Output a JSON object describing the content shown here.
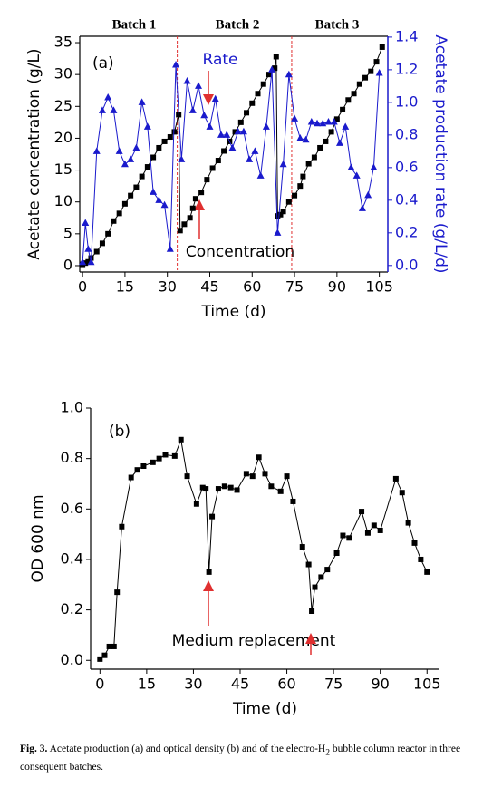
{
  "chart_data": [
    {
      "type": "line",
      "panel": "(a)",
      "batches": [
        "Batch 1",
        "Batch 2",
        "Batch 3"
      ],
      "xlabel": "Time (d)",
      "ylabel": "Acetate concentration (g/L)",
      "y2label": "Acetate production rate (g/L/d)",
      "xlim": [
        -1,
        108
      ],
      "xticks": [
        0,
        15,
        30,
        45,
        60,
        75,
        90,
        105
      ],
      "ylim": [
        -1,
        36
      ],
      "yticks": [
        0,
        5,
        10,
        15,
        20,
        25,
        30,
        35
      ],
      "y2lim": [
        -0.04,
        1.405
      ],
      "y2ticks": [
        {
          "value": 0,
          "label": "0.0"
        },
        {
          "value": 0.2,
          "label": "0.2"
        },
        {
          "value": 0.4,
          "label": "0.4"
        },
        {
          "value": 0.6,
          "label": "0.6"
        },
        {
          "value": 0.8,
          "label": "0.8"
        },
        {
          "value": 1.0,
          "label": "1.0"
        },
        {
          "value": 1.2,
          "label": "1.2"
        },
        {
          "value": 1.4,
          "label": "1.4"
        }
      ],
      "y2color": "#1a1acc",
      "vlines": [
        33.5,
        74
      ],
      "vline_color": "#e03030",
      "series": [
        {
          "name": "Concentration",
          "color": "#000000",
          "marker": "square",
          "x": [
            0,
            1,
            2,
            3,
            5,
            7,
            9,
            11,
            13,
            15,
            17,
            19,
            21,
            23,
            25,
            27,
            29,
            31,
            32.5,
            34,
            34.5,
            36,
            38,
            39,
            40,
            42,
            44,
            46,
            48,
            50,
            52,
            54,
            56,
            58,
            60,
            62,
            64,
            66,
            68,
            68.5,
            69,
            70,
            71,
            73,
            75,
            77,
            78,
            80,
            82,
            84,
            86,
            88,
            90,
            92,
            94,
            96,
            98,
            100,
            102,
            104,
            106
          ],
          "values": [
            0.2,
            0.4,
            0.6,
            1.2,
            2.2,
            3.5,
            5,
            7,
            8.2,
            9.7,
            11,
            12.3,
            14,
            15.5,
            17,
            18.5,
            19.5,
            20.2,
            21,
            23.7,
            5.5,
            6.5,
            7.5,
            9,
            10.5,
            11.5,
            13.5,
            15.3,
            16.5,
            18,
            19.5,
            21,
            22.5,
            24,
            25.5,
            27,
            28.5,
            30,
            31,
            32.8,
            7.8,
            8,
            8.5,
            10,
            11,
            12.5,
            14,
            16,
            17,
            18.5,
            19.5,
            21,
            23,
            24.5,
            26,
            27,
            28.5,
            29.5,
            30.5,
            32,
            34.3
          ]
        },
        {
          "name": "Rate",
          "color": "#1a1acc",
          "marker": "triangle",
          "axis": "y2",
          "x": [
            0,
            1,
            2,
            3,
            5,
            7,
            9,
            11,
            13,
            15,
            17,
            19,
            21,
            23,
            25,
            27,
            29,
            31,
            33,
            35,
            37,
            39,
            41,
            43,
            45,
            47,
            49,
            51,
            53,
            55,
            57,
            59,
            61,
            63,
            65,
            67,
            69,
            71,
            73,
            75,
            77,
            79,
            81,
            83,
            85,
            87,
            89,
            91,
            93,
            95,
            97,
            99,
            101,
            103,
            105
          ],
          "values": [
            0.02,
            0.26,
            0.1,
            0.02,
            0.7,
            0.95,
            1.03,
            0.95,
            0.7,
            0.62,
            0.65,
            0.72,
            1.0,
            0.85,
            0.45,
            0.4,
            0.37,
            0.1,
            1.23,
            0.65,
            1.13,
            0.95,
            1.1,
            0.92,
            0.85,
            1.02,
            0.8,
            0.8,
            0.72,
            0.82,
            0.82,
            0.65,
            0.7,
            0.55,
            0.85,
            1.2,
            0.2,
            0.62,
            1.17,
            0.9,
            0.78,
            0.77,
            0.88,
            0.87,
            0.87,
            0.88,
            0.88,
            0.75,
            0.85,
            0.6,
            0.55,
            0.35,
            0.43,
            0.6,
            1.18
          ]
        }
      ]
    },
    {
      "type": "line",
      "panel": "(b)",
      "annotation": "Medium replacement",
      "xlabel": "Time (d)",
      "ylabel": "OD 600 nm",
      "xlim": [
        -3,
        109
      ],
      "xticks": [
        0,
        15,
        30,
        45,
        60,
        75,
        90,
        105
      ],
      "ylim": [
        -0.035,
        1.0
      ],
      "yticks": [
        {
          "value": 0,
          "label": "0.0"
        },
        {
          "value": 0.2,
          "label": "0.2"
        },
        {
          "value": 0.4,
          "label": "0.4"
        },
        {
          "value": 0.6,
          "label": "0.6"
        },
        {
          "value": 0.8,
          "label": "0.8"
        },
        {
          "value": 1.0,
          "label": "1.0"
        }
      ],
      "series": [
        {
          "name": "OD 600 nm",
          "color": "#000000",
          "marker": "square",
          "x": [
            0,
            1.5,
            3,
            4.5,
            5.5,
            7,
            10,
            12,
            14,
            17,
            19,
            21,
            24,
            26,
            28,
            31,
            33,
            34,
            35,
            36,
            38,
            40,
            42,
            44,
            47,
            49,
            51,
            53,
            55,
            58,
            60,
            62,
            65,
            67,
            68,
            69,
            71,
            73,
            76,
            78,
            80,
            84,
            86,
            88,
            90,
            95,
            97,
            99,
            101,
            103,
            105
          ],
          "values": [
            0.005,
            0.02,
            0.055,
            0.055,
            0.27,
            0.53,
            0.725,
            0.755,
            0.77,
            0.785,
            0.8,
            0.815,
            0.81,
            0.875,
            0.73,
            0.62,
            0.685,
            0.68,
            0.35,
            0.57,
            0.68,
            0.69,
            0.685,
            0.675,
            0.74,
            0.73,
            0.805,
            0.74,
            0.69,
            0.67,
            0.73,
            0.63,
            0.45,
            0.38,
            0.195,
            0.29,
            0.33,
            0.36,
            0.425,
            0.495,
            0.485,
            0.59,
            0.505,
            0.535,
            0.515,
            0.72,
            0.665,
            0.545,
            0.465,
            0.4,
            0.35
          ]
        }
      ]
    }
  ],
  "caption": {
    "label": "Fig. 3.",
    "text": "Acetate production (a) and optical density (b) and of the electro-H",
    "sub": "2",
    "rest": "bubble column reactor in three consequent batches."
  }
}
